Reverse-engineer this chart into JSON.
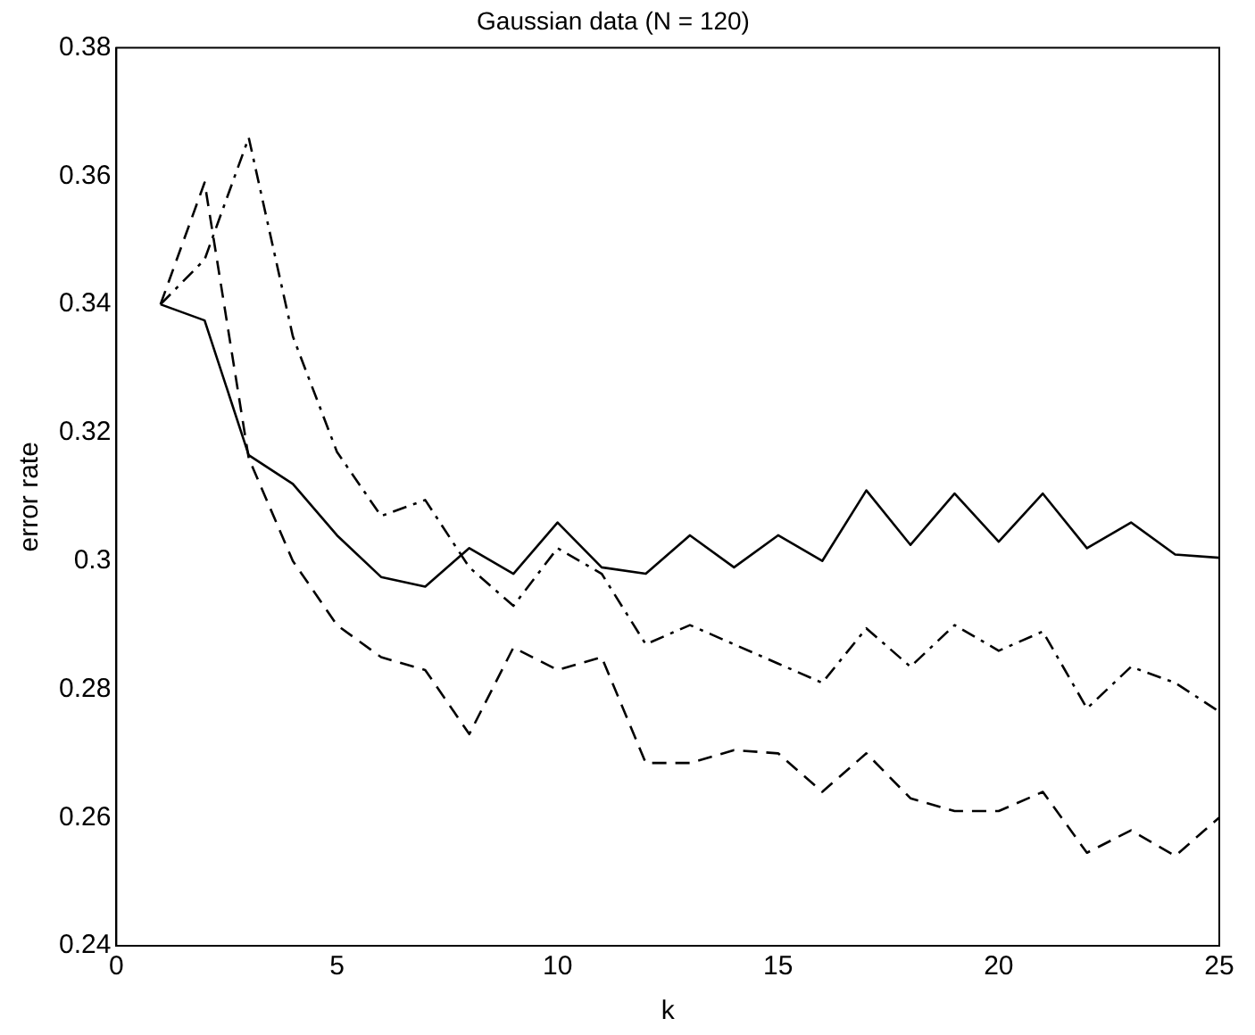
{
  "chart_data": {
    "type": "line",
    "title": "Gaussian data (N = 120)",
    "xlabel": "k",
    "ylabel": "error rate",
    "x": [
      1,
      2,
      3,
      4,
      5,
      6,
      7,
      8,
      9,
      10,
      11,
      12,
      13,
      14,
      15,
      16,
      17,
      18,
      19,
      20,
      21,
      22,
      23,
      24,
      25
    ],
    "xlim": [
      0,
      25
    ],
    "xticks": [
      0,
      5,
      10,
      15,
      20,
      25
    ],
    "ylim": [
      0.24,
      0.38
    ],
    "yticks": [
      0.24,
      0.26,
      0.28,
      {
        "value": 0.3,
        "label": "0.3"
      },
      0.32,
      0.34,
      0.36,
      0.38
    ],
    "grid": false,
    "legend": false,
    "marker": "none",
    "series": [
      {
        "color": "#000000",
        "line_style": "solid",
        "values": [
          0.34,
          0.3375,
          0.3165,
          0.312,
          0.304,
          0.2975,
          0.296,
          0.302,
          0.298,
          0.306,
          0.299,
          0.298,
          0.304,
          0.299,
          0.304,
          0.3,
          0.311,
          0.3025,
          0.3105,
          0.303,
          0.3105,
          0.302,
          0.306,
          0.301,
          0.3005
        ]
      },
      {
        "color": "#000000",
        "line_style": "dashed",
        "values": [
          0.34,
          0.359,
          0.316,
          0.3,
          0.29,
          0.285,
          0.283,
          0.273,
          0.2865,
          0.283,
          0.285,
          0.2685,
          0.2685,
          0.2705,
          0.27,
          0.264,
          0.27,
          0.263,
          0.261,
          0.261,
          0.264,
          0.2545,
          0.258,
          0.254,
          0.26
        ]
      },
      {
        "color": "#000000",
        "line_style": "dashdot",
        "values": [
          0.34,
          0.347,
          0.366,
          0.335,
          0.317,
          0.307,
          0.3095,
          0.299,
          0.293,
          0.302,
          0.298,
          0.287,
          0.29,
          0.287,
          0.284,
          0.281,
          0.2895,
          0.2835,
          0.29,
          0.286,
          0.289,
          0.277,
          0.2835,
          0.281,
          0.2765
        ]
      }
    ]
  }
}
